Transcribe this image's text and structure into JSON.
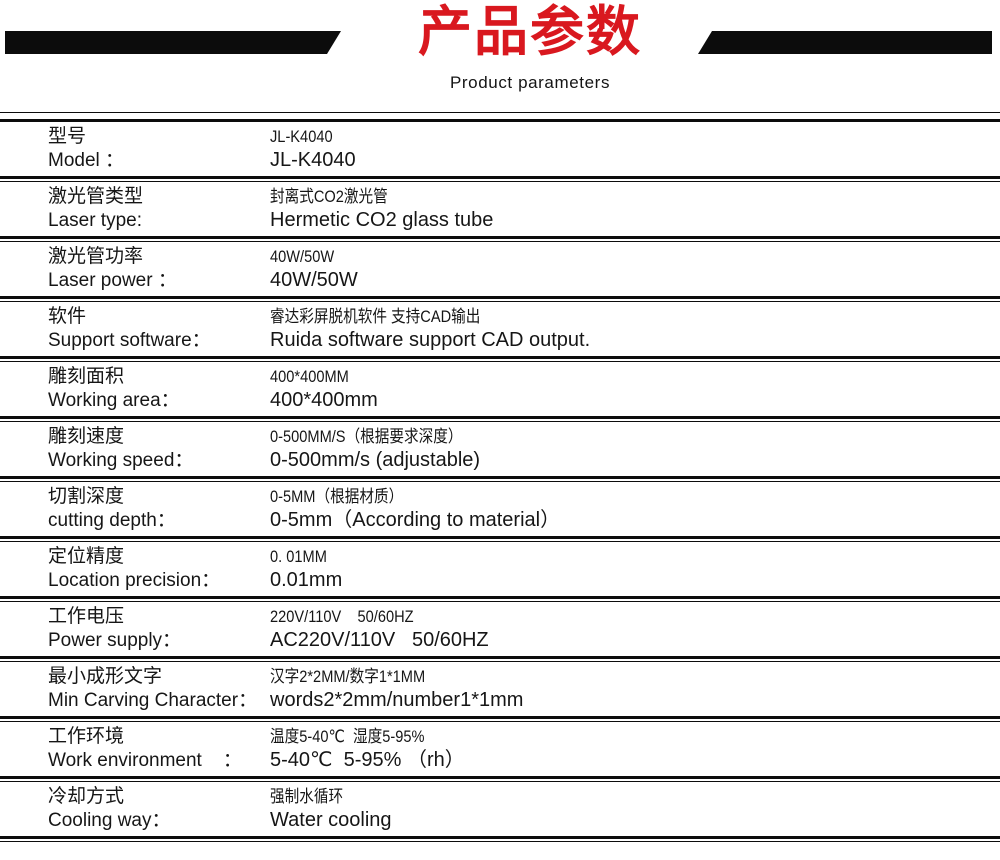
{
  "colors": {
    "accent_red": "#d9181f",
    "bar_black": "#0c0c0c",
    "line_black": "#0c0c0c",
    "text": "#161616"
  },
  "header": {
    "title_zh": "产品参数",
    "title_en": "Product parameters"
  },
  "table": {
    "rows": [
      {
        "label_zh": "型号",
        "label_en": "Model ：",
        "value_line1": "JL-K4040",
        "value_line2": "JL-K4040"
      },
      {
        "label_zh": "激光管类型",
        "label_en": "Laser type:",
        "value_line1": "封离式CO2激光管",
        "value_line2": "Hermetic CO2 glass tube"
      },
      {
        "label_zh": "激光管功率",
        "label_en": "Laser power ：",
        "value_line1": "40W/50W",
        "value_line2": "40W/50W"
      },
      {
        "label_zh": "软件",
        "label_en": "Support software：",
        "value_line1": "睿达彩屏脱机软件 支持CAD输出",
        "value_line2": "Ruida software support CAD output."
      },
      {
        "label_zh": "雕刻面积",
        "label_en": "Working area：",
        "value_line1": "400*400MM",
        "value_line2": "400*400mm"
      },
      {
        "label_zh": "雕刻速度",
        "label_en": "Working speed：",
        "value_line1": "0-500MM/S（根据要求深度）",
        "value_line2": "0-500mm/s (adjustable)"
      },
      {
        "label_zh": "切割深度",
        "label_en": "cutting depth：",
        "value_line1": "0-5MM（根据材质）",
        "value_line2": "0-5mm（According to material）"
      },
      {
        "label_zh": "定位精度",
        "label_en": "Location precision：",
        "value_line1": "0. 01MM",
        "value_line2": "0.01mm"
      },
      {
        "label_zh": "工作电压",
        "label_en": "Power supply：",
        "value_line1": "220V/110V    50/60HZ",
        "value_line2": "AC220V/110V   50/60HZ"
      },
      {
        "label_zh": "最小成形文字",
        "label_en": "Min Carving Character：",
        "value_line1": "汉字2*2MM/数字1*1MM",
        "value_line2": "words2*2mm/number1*1mm"
      },
      {
        "label_zh": "工作环境",
        "label_en": "Work environment    ：",
        "value_line1": "温度5-40℃  湿度5-95%",
        "value_line2": "5-40℃  5-95% （rh）"
      },
      {
        "label_zh": "冷却方式",
        "label_en": "Cooling way：",
        "value_line1": "强制水循环",
        "value_line2": "Water cooling"
      }
    ]
  }
}
